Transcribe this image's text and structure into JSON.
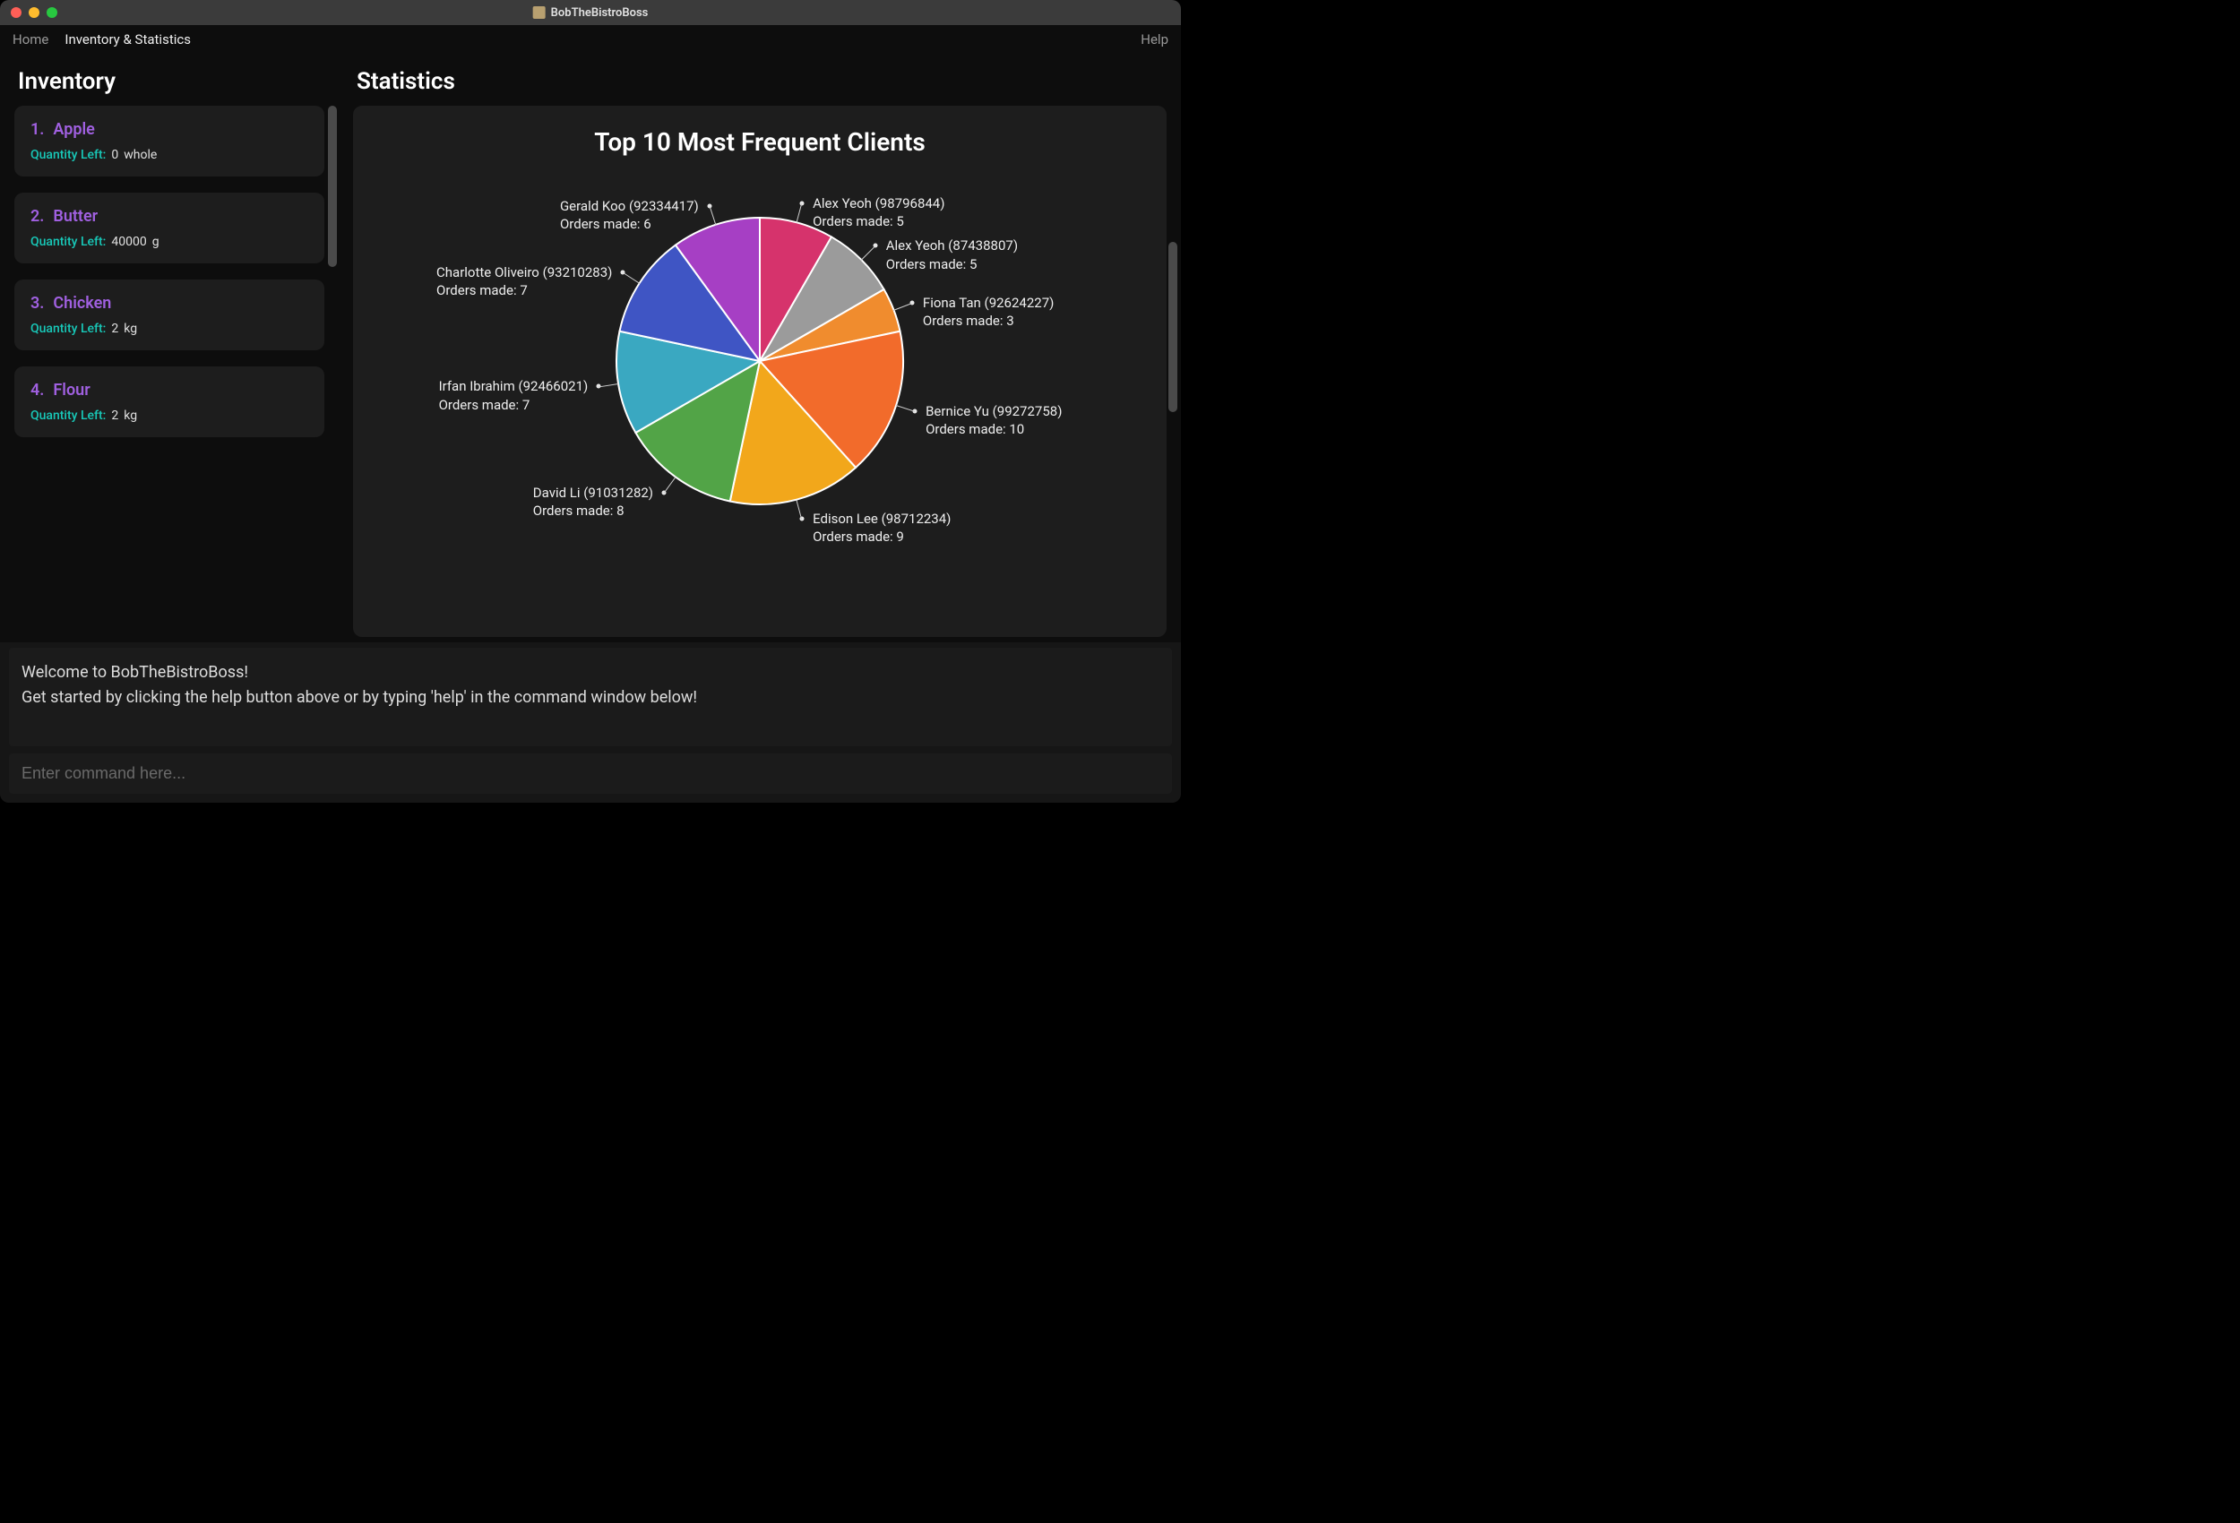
{
  "window": {
    "title": "BobTheBistroBoss",
    "traffic_light_colors": [
      "#ff5f57",
      "#febc2e",
      "#28c840"
    ]
  },
  "menubar": {
    "items": [
      {
        "label": "Home",
        "active": false
      },
      {
        "label": "Inventory & Statistics",
        "active": true
      }
    ],
    "help_label": "Help"
  },
  "inventory": {
    "title": "Inventory",
    "quantity_label": "Quantity Left:",
    "accent_color": "#a060e0",
    "qty_label_color": "#18c8b8",
    "card_bg": "#1d1d1d",
    "items": [
      {
        "num": "1.",
        "name": "Apple",
        "qty": "0",
        "unit": "whole"
      },
      {
        "num": "2.",
        "name": "Butter",
        "qty": "40000",
        "unit": "g"
      },
      {
        "num": "3.",
        "name": "Chicken",
        "qty": "2",
        "unit": "kg"
      },
      {
        "num": "4.",
        "name": "Flour",
        "qty": "2",
        "unit": "kg"
      }
    ]
  },
  "statistics": {
    "title": "Statistics",
    "chart": {
      "type": "pie",
      "title": "Top 10 Most Frequent Clients",
      "title_fontsize": 28,
      "background_color": "#1d1d1d",
      "slice_border_color": "#ffffff",
      "slice_border_width": 2,
      "radius": 160,
      "start_angle_deg": -90,
      "direction": "clockwise",
      "label_fontsize": 15,
      "label_color": "#eeeeee",
      "slices": [
        {
          "name": "Alex Yeoh",
          "phone": "98796844",
          "orders": 5,
          "color": "#d6336c"
        },
        {
          "name": "Alex Yeoh",
          "phone": "87438807",
          "orders": 5,
          "color": "#9b9b9b"
        },
        {
          "name": "Fiona Tan",
          "phone": "92624227",
          "orders": 3,
          "color": "#f08c2e"
        },
        {
          "name": "Bernice Yu",
          "phone": "99272758",
          "orders": 10,
          "color": "#f26b2b"
        },
        {
          "name": "Edison Lee",
          "phone": "98712234",
          "orders": 9,
          "color": "#f2a71b"
        },
        {
          "name": "David Li",
          "phone": "91031282",
          "orders": 8,
          "color": "#52a447"
        },
        {
          "name": "Irfan Ibrahim",
          "phone": "92466021",
          "orders": 7,
          "color": "#3aa8c1"
        },
        {
          "name": "Charlotte Oliveiro",
          "phone": "93210283",
          "orders": 7,
          "color": "#3f55c4"
        },
        {
          "name": "Gerald Koo",
          "phone": "92334417",
          "orders": 6,
          "color": "#a63fc4"
        }
      ]
    }
  },
  "welcome": {
    "line1": "Welcome to BobTheBistroBoss!",
    "line2": "Get started by clicking the help button above or by typing 'help' in the command window below!"
  },
  "command_input": {
    "placeholder": "Enter command here..."
  }
}
